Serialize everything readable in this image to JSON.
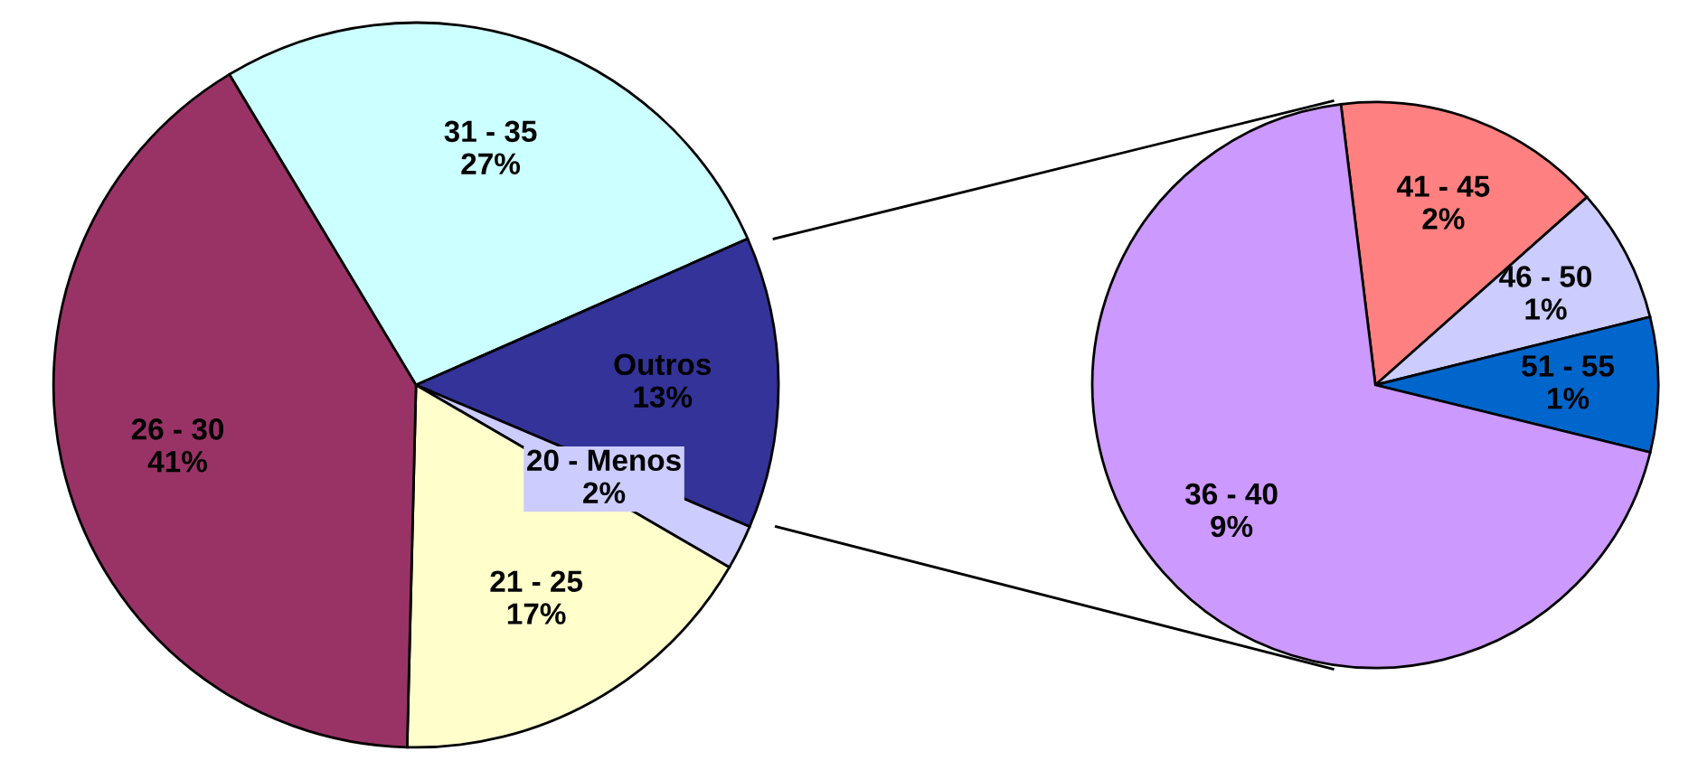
{
  "chart_data": [
    {
      "type": "pie",
      "categories": [
        "31 - 35",
        "Outros",
        "20 - Menos",
        "21 - 25",
        "26 - 30"
      ],
      "values": [
        27,
        13,
        2,
        17,
        41
      ],
      "value_labels": [
        "27%",
        "13%",
        "2%",
        "17%",
        "41%"
      ],
      "colors": [
        "#ccffff",
        "#333399",
        "#ccccff",
        "#ffffcc",
        "#993366"
      ]
    },
    {
      "type": "pie",
      "categories": [
        "41 - 45",
        "46 - 50",
        "51 - 55",
        "36 - 40"
      ],
      "values": [
        2,
        1,
        1,
        9
      ],
      "value_labels": [
        "2%",
        "1%",
        "1%",
        "9%"
      ],
      "colors": [
        "#ff8080",
        "#ccccff",
        "#0066cc",
        "#cc99ff"
      ]
    }
  ]
}
